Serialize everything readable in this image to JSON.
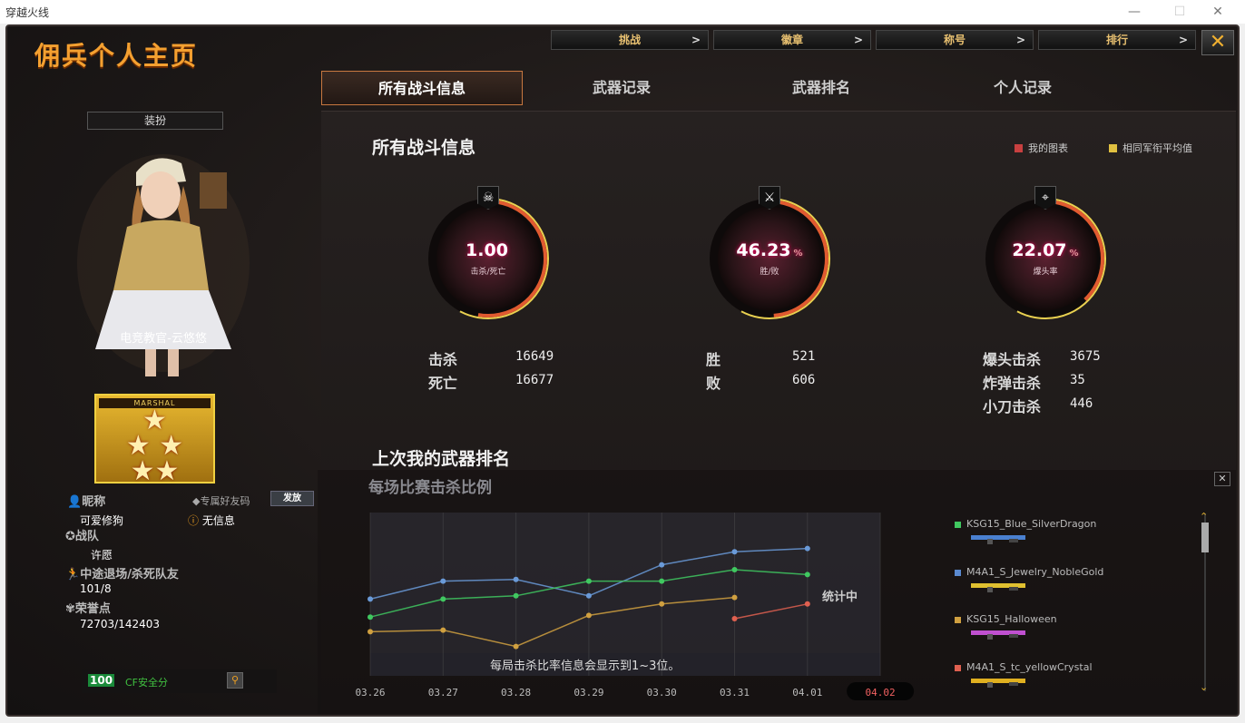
{
  "window": {
    "title": "穿越火线",
    "controls": [
      "—",
      "☐",
      "✕"
    ]
  },
  "header": {
    "title": "佣兵个人主页",
    "nav": [
      {
        "label": "挑战"
      },
      {
        "label": "徽章"
      },
      {
        "label": "称号"
      },
      {
        "label": "排行"
      }
    ],
    "chev": ">",
    "close": "✕"
  },
  "tabs": [
    {
      "label": "所有战斗信息",
      "active": true
    },
    {
      "label": "武器记录"
    },
    {
      "label": "武器排名"
    },
    {
      "label": "个人记录"
    }
  ],
  "profile": {
    "dress_button": "装扮",
    "character_name": "电竞教官-云悠悠",
    "rank_badge": "MARSHAL",
    "nickname_label": "昵称",
    "nickname": "可爱修狗",
    "friend_code_label": "专属好友码",
    "issue_button": "发放",
    "friend_code_value": "无信息",
    "team_label": "战队",
    "team": "许愿",
    "quit_label": "中途退场/杀死队友",
    "quit_value": "101/8",
    "honor_label": "荣誉点",
    "honor_value": "72703/142403",
    "security_score": "100",
    "security_label": "CF安全分"
  },
  "stats": {
    "title": "所有战斗信息",
    "legend": [
      {
        "label": "我的图表",
        "color": "#c84040"
      },
      {
        "label": "相同军衔平均值",
        "color": "#e0c040"
      }
    ],
    "gauges": [
      {
        "value": "1.00",
        "label": "击杀/死亡",
        "icon": "skull-icon",
        "pct": "",
        "fill": 0.5
      },
      {
        "value": "46.23",
        "label": "胜/败",
        "icon": "crossed-rifles-icon",
        "pct": "%",
        "fill": 0.46
      },
      {
        "value": "22.07",
        "label": "爆头率",
        "icon": "headshot-icon",
        "pct": "%",
        "fill": 0.22
      }
    ],
    "kd": [
      {
        "label": "击杀",
        "value": "16649"
      },
      {
        "label": "死亡",
        "value": "16677"
      }
    ],
    "wl": [
      {
        "label": "胜",
        "value": "521"
      },
      {
        "label": "败",
        "value": "606"
      }
    ],
    "special": [
      {
        "label": "爆头击杀",
        "value": "3675"
      },
      {
        "label": "炸弹击杀",
        "value": "35"
      },
      {
        "label": "小刀击杀",
        "value": "446"
      }
    ]
  },
  "weapons": {
    "title": "上次我的武器排名",
    "chart_title": "每场比赛击杀比例",
    "pending": "统计中",
    "note": "每局击杀比率信息会显示到1~3位。"
  },
  "chart_data": {
    "type": "line",
    "title": "每场比赛击杀比例",
    "categories": [
      "03.26",
      "03.27",
      "03.28",
      "03.29",
      "03.30",
      "03.31",
      "04.01",
      "04.02"
    ],
    "highlight_category": "04.02",
    "grid": true,
    "ylim": [
      0,
      100
    ],
    "series": [
      {
        "name": "M4A1_S_Jewelry_NobleGold",
        "color": "#6a9ad8",
        "values": [
          47,
          58,
          59,
          49,
          68,
          76,
          78,
          null
        ]
      },
      {
        "name": "KSG15_Blue_SilverDragon",
        "color": "#40c860",
        "values": [
          36,
          47,
          49,
          58,
          58,
          65,
          62,
          null
        ]
      },
      {
        "name": "KSG15_Halloween",
        "color": "#d0a040",
        "values": [
          27,
          28,
          18,
          37,
          44,
          48,
          null,
          null
        ]
      },
      {
        "name": "M4A1_S_tc_yellowCrystal",
        "color": "#e06050",
        "values": [
          null,
          null,
          null,
          null,
          null,
          35,
          44,
          null
        ]
      }
    ]
  },
  "weapon_list": [
    {
      "name": "KSG15_Blue_SilverDragon",
      "color": "#40c860"
    },
    {
      "name": "M4A1_S_Jewelry_NobleGold",
      "color": "#5a8ad0"
    },
    {
      "name": "KSG15_Halloween",
      "color": "#d0a040"
    },
    {
      "name": "M4A1_S_tc_yellowCrystal",
      "color": "#e06050"
    }
  ]
}
